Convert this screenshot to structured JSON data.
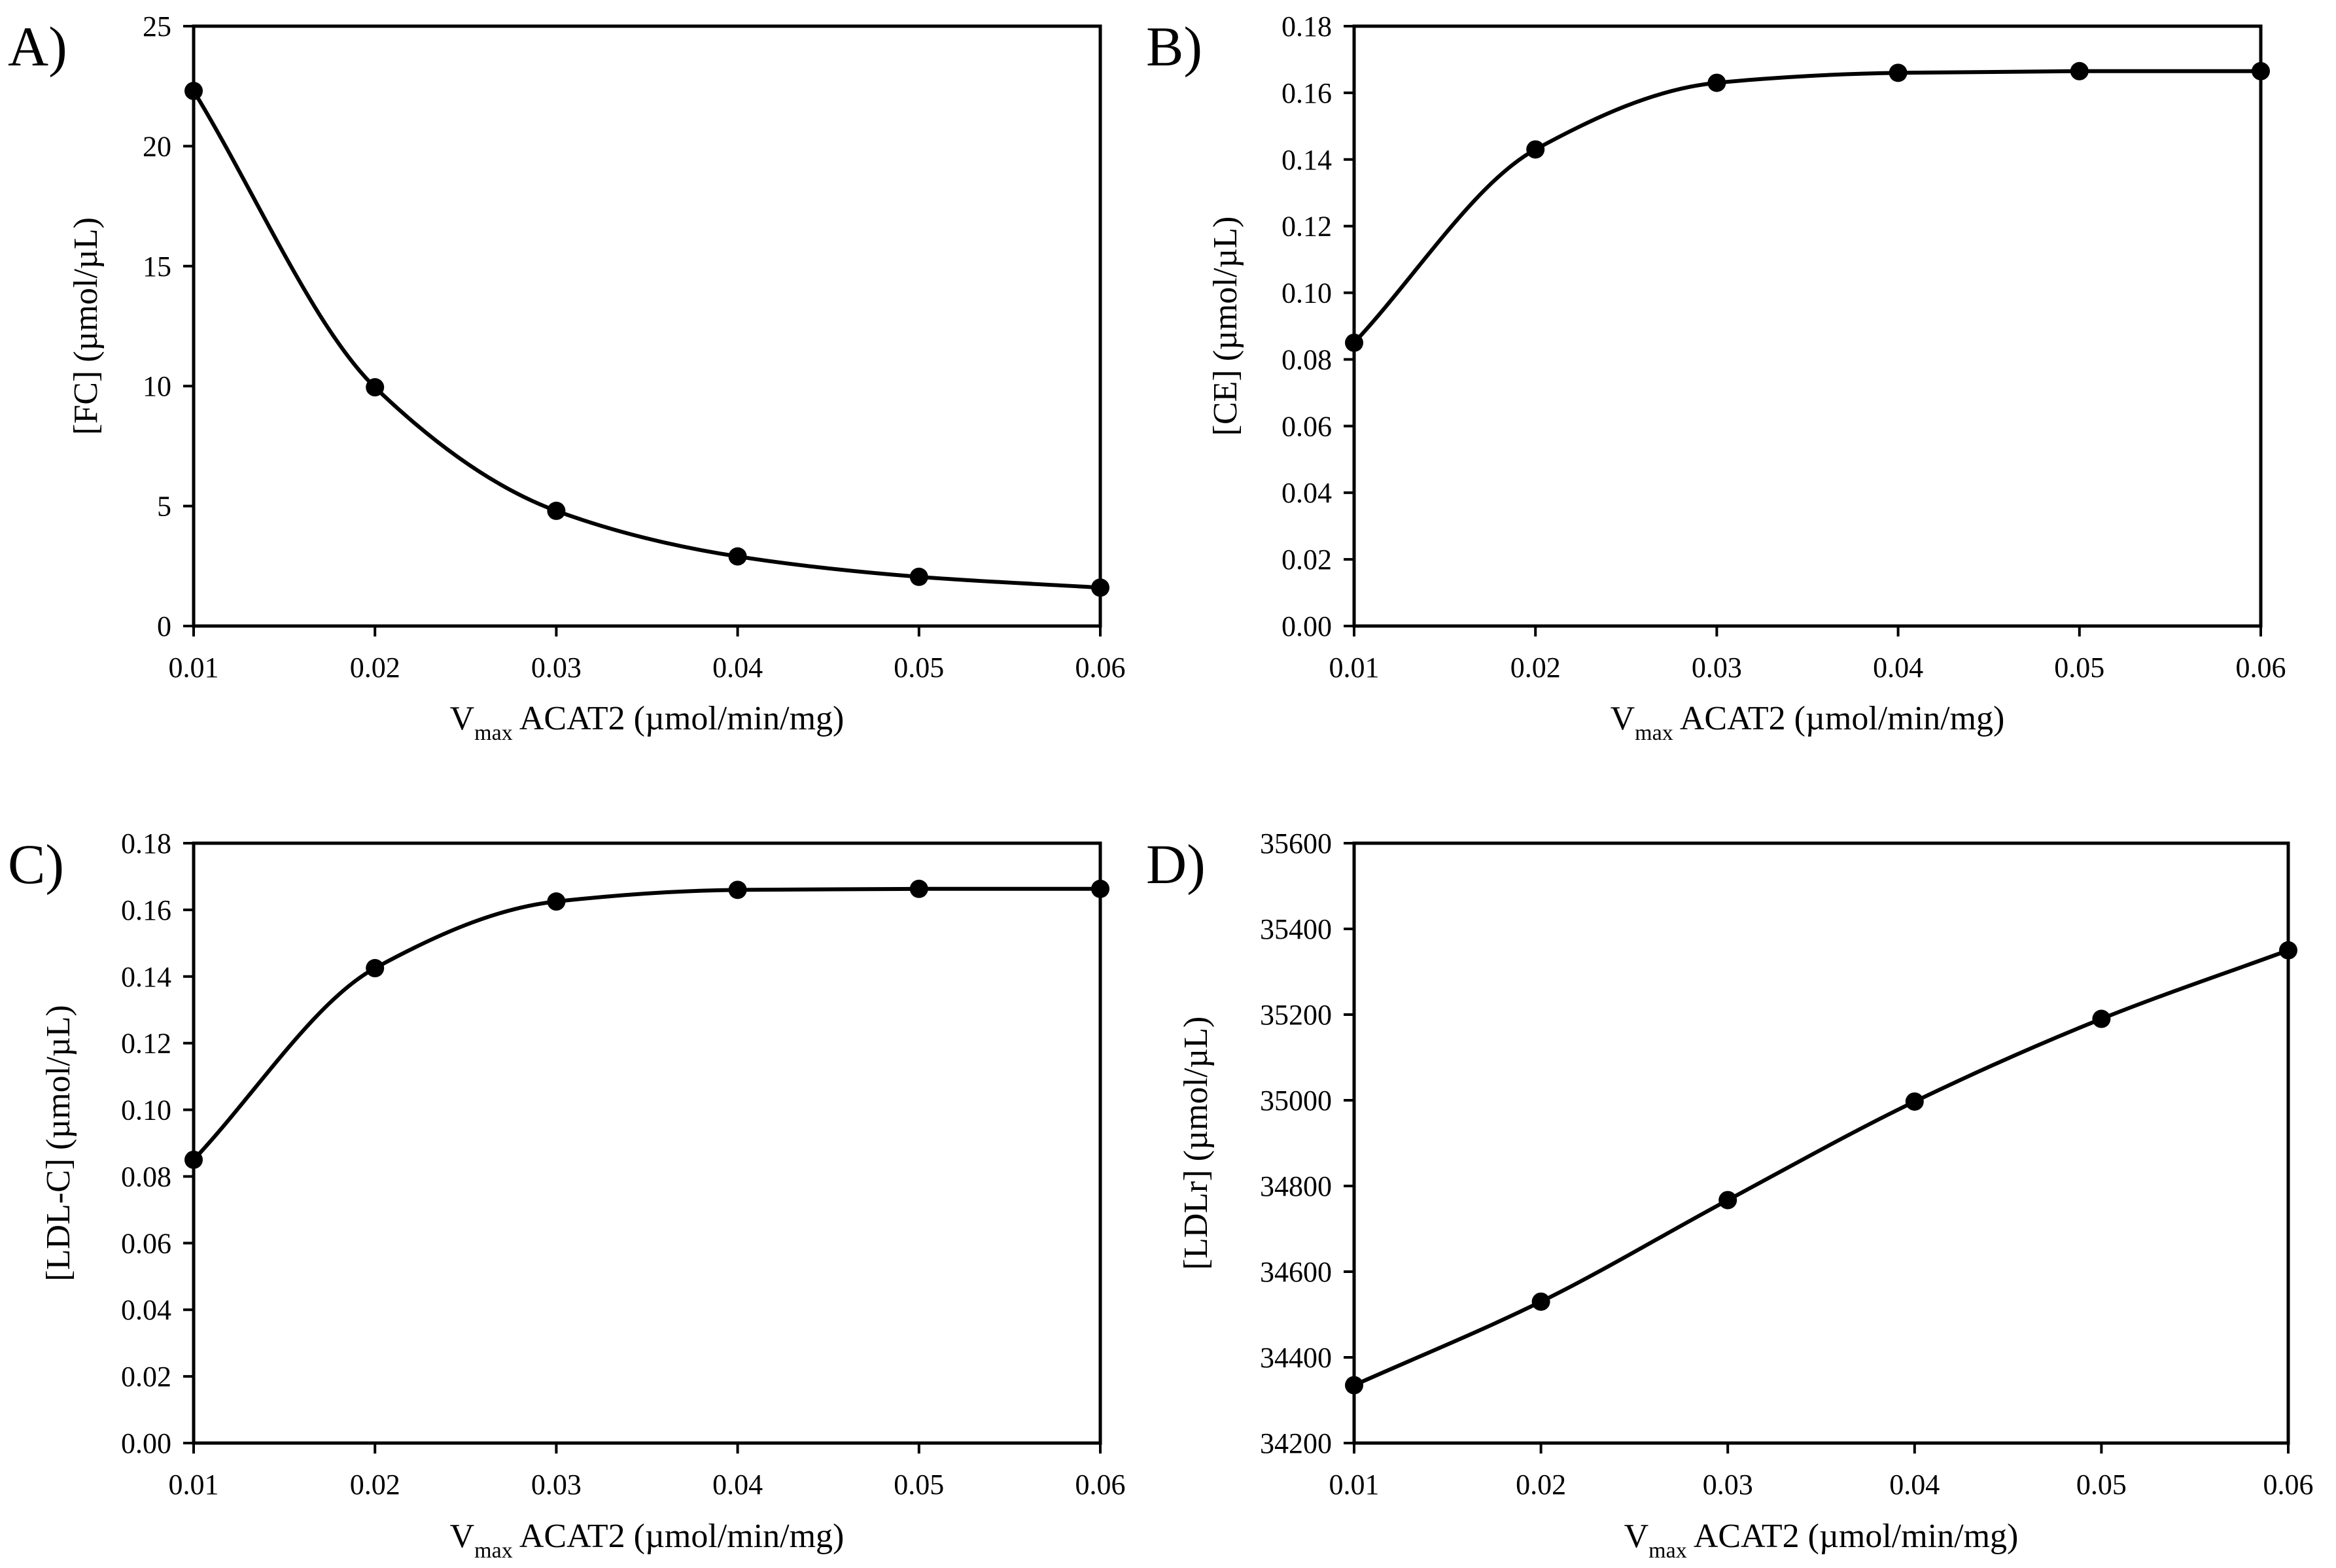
{
  "chart_data": [
    {
      "panel": "A)",
      "type": "line",
      "x": [
        0.01,
        0.02,
        0.03,
        0.04,
        0.05,
        0.06
      ],
      "series": [
        {
          "name": "[FC]",
          "values": [
            22.3,
            9.95,
            4.8,
            2.9,
            2.05,
            1.6
          ]
        }
      ],
      "xlabel": {
        "main": "V",
        "sub": "max",
        "rest": " ACAT2 (µmol/min/mg)"
      },
      "ylabel": "[FC] (µmol/µL)",
      "xlim": [
        0.01,
        0.06
      ],
      "ylim": [
        0,
        25
      ],
      "xticks": [
        "0.01",
        "0.02",
        "0.03",
        "0.04",
        "0.05",
        "0.06"
      ],
      "yticks": [
        "0",
        "5",
        "10",
        "15",
        "20",
        "25"
      ],
      "grid": false
    },
    {
      "panel": "B)",
      "type": "line",
      "x": [
        0.01,
        0.02,
        0.03,
        0.04,
        0.05,
        0.06
      ],
      "series": [
        {
          "name": "[CE]",
          "values": [
            0.085,
            0.143,
            0.163,
            0.166,
            0.1665,
            0.1665
          ]
        }
      ],
      "xlabel": {
        "main": "V",
        "sub": "max",
        "rest": " ACAT2 (µmol/min/mg)"
      },
      "ylabel": "[CE] (µmol/µL)",
      "xlim": [
        0.01,
        0.06
      ],
      "ylim": [
        0,
        0.18
      ],
      "xticks": [
        "0.01",
        "0.02",
        "0.03",
        "0.04",
        "0.05",
        "0.06"
      ],
      "yticks": [
        "0.00",
        "0.02",
        "0.04",
        "0.06",
        "0.08",
        "0.10",
        "0.12",
        "0.14",
        "0.16",
        "0.18"
      ],
      "grid": false
    },
    {
      "panel": "C)",
      "type": "line",
      "x": [
        0.01,
        0.02,
        0.03,
        0.04,
        0.05,
        0.06
      ],
      "series": [
        {
          "name": "[LDL-C]",
          "values": [
            0.085,
            0.1425,
            0.1625,
            0.166,
            0.1663,
            0.1663
          ]
        }
      ],
      "xlabel": {
        "main": "V",
        "sub": "max",
        "rest": " ACAT2 (µmol/min/mg)"
      },
      "ylabel": "[LDL-C] (µmol/µL)",
      "xlim": [
        0.01,
        0.06
      ],
      "ylim": [
        0,
        0.18
      ],
      "xticks": [
        "0.01",
        "0.02",
        "0.03",
        "0.04",
        "0.05",
        "0.06"
      ],
      "yticks": [
        "0.00",
        "0.02",
        "0.04",
        "0.06",
        "0.08",
        "0.10",
        "0.12",
        "0.14",
        "0.16",
        "0.18"
      ],
      "grid": false
    },
    {
      "panel": "D)",
      "type": "line",
      "x": [
        0.01,
        0.02,
        0.03,
        0.04,
        0.05,
        0.06
      ],
      "series": [
        {
          "name": "[LDLr]",
          "values": [
            34335,
            34530,
            34767,
            34997,
            35190,
            35350
          ]
        }
      ],
      "xlabel": {
        "main": "V",
        "sub": "max",
        "rest": " ACAT2 (µmol/min/mg)"
      },
      "ylabel": "[LDLr] (µmol/µL)",
      "xlim": [
        0.01,
        0.06
      ],
      "ylim": [
        34200,
        35600
      ],
      "xticks": [
        "0.01",
        "0.02",
        "0.03",
        "0.04",
        "0.05",
        "0.06"
      ],
      "yticks": [
        "34200",
        "34400",
        "34600",
        "34800",
        "35000",
        "35200",
        "35400",
        "35600"
      ],
      "grid": false
    }
  ]
}
